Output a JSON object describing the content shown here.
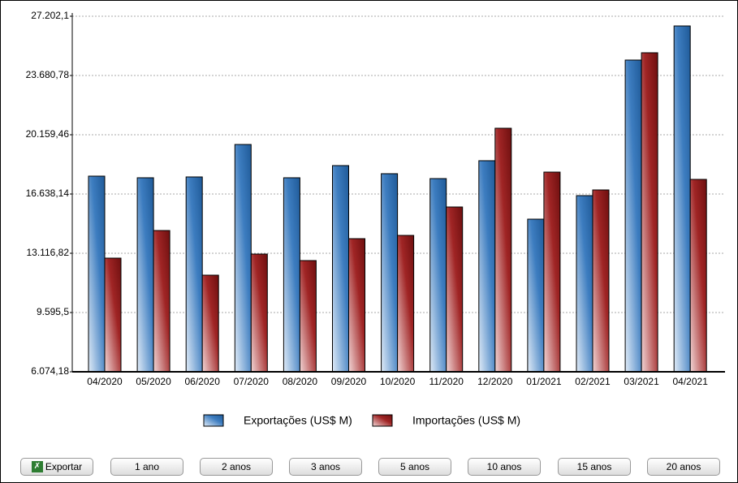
{
  "chart_data": {
    "type": "bar",
    "categories": [
      "04/2020",
      "05/2020",
      "06/2020",
      "07/2020",
      "08/2020",
      "09/2020",
      "10/2020",
      "11/2020",
      "12/2020",
      "01/2021",
      "02/2021",
      "03/2021",
      "04/2021"
    ],
    "series": [
      {
        "name": "Exportações (US$ M)",
        "color": "#2e6fb0",
        "values": [
          17700,
          17604,
          17652,
          19581,
          17604,
          18327,
          17845,
          17555,
          18617,
          15143,
          16542,
          24598,
          26624
        ]
      },
      {
        "name": "Importações (US$ M)",
        "color": "#8b1a1a",
        "values": [
          12828,
          14468,
          11815,
          13069,
          12683,
          13985,
          14178,
          15867,
          20546,
          17941,
          16880,
          25032,
          17507
        ]
      }
    ],
    "ylim": [
      6074.18,
      27202.1
    ],
    "yticks": [
      {
        "value": 6074.18,
        "label": "6.074,18"
      },
      {
        "value": 9595.5,
        "label": "9.595,5"
      },
      {
        "value": 13116.82,
        "label": "13.116,82"
      },
      {
        "value": 16638.14,
        "label": "16.638,14"
      },
      {
        "value": 20159.46,
        "label": "20.159,46"
      },
      {
        "value": 23680.78,
        "label": "23.680,78"
      },
      {
        "value": 27202.1,
        "label": "27.202,1"
      }
    ],
    "grid": true
  },
  "buttons": [
    "Exportar",
    "1 ano",
    "2 anos",
    "3 anos",
    "5 anos",
    "10 anos",
    "15 anos",
    "20 anos"
  ]
}
